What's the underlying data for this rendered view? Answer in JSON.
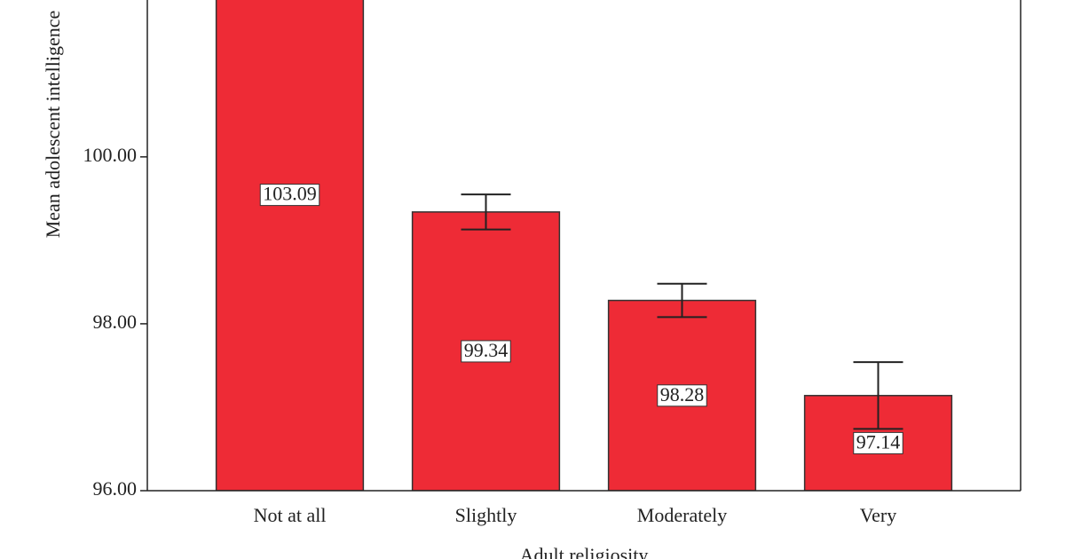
{
  "chart_data": {
    "type": "bar",
    "x_label": "Adult religiosity",
    "y_label": "Mean adolescent intelligence",
    "categories": [
      "Not at all",
      "Slightly",
      "Moderately",
      "Very"
    ],
    "values": [
      103.09,
      99.34,
      98.28,
      97.14
    ],
    "errors": [
      null,
      0.21,
      0.2,
      0.4
    ],
    "value_labels": [
      "103.09",
      "99.34",
      "98.28",
      "97.14"
    ],
    "color": "#ee2b36",
    "ylim": [
      96,
      101.88
    ],
    "yticks": [
      {
        "value": 96,
        "label": "96.00"
      },
      {
        "value": 98,
        "label": "98.00"
      },
      {
        "value": 100,
        "label": "100.00"
      }
    ]
  }
}
